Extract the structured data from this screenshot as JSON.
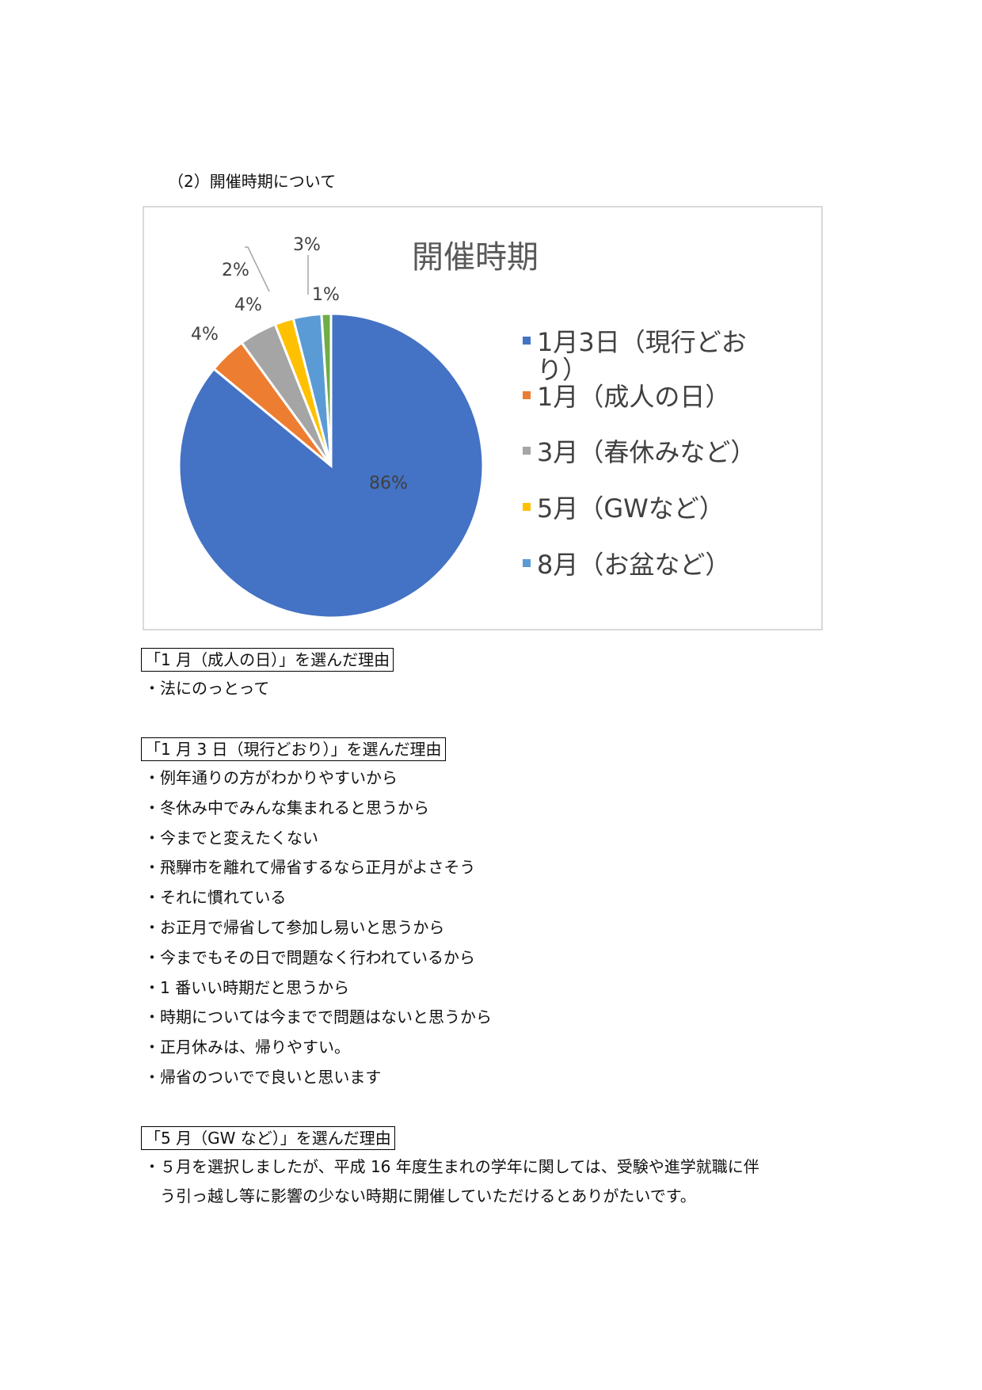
{
  "heading": "（2）開催時期について",
  "chart_data": {
    "type": "pie",
    "title": "開催時期",
    "categories": [
      "1月3日（現行どおり）",
      "1月（成人の日）",
      "3月（春休みなど）",
      "5月（GWなど）",
      "8月（お盆など）",
      ""
    ],
    "values": [
      86,
      4,
      4,
      2,
      3,
      1
    ],
    "data_labels": [
      "86%",
      "4%",
      "4%",
      "2%",
      "3%",
      "1%"
    ],
    "colors": [
      "#4472c4",
      "#ed7d31",
      "#a5a5a5",
      "#ffc000",
      "#5b9bd5",
      "#70ad47"
    ],
    "legend": [
      "1月3日（現行どお",
      "り）",
      "1月（成人の日）",
      "3月（春休みなど）",
      "5月（GWなど）",
      "8月（お盆など）"
    ],
    "legend_placement": "right",
    "start_angle": "12 o'clock, clockwise"
  },
  "sections": [
    {
      "title": "「1 月（成人の日）」を選んだ理由",
      "items": [
        "・法にのっとって"
      ]
    },
    {
      "title": "「1 月 3 日（現行どおり）」を選んだ理由",
      "items": [
        "・例年通りの方がわかりやすいから",
        "・冬休み中でみんな集まれると思うから",
        "・今までと変えたくない",
        "・飛騨市を離れて帰省するなら正月がよさそう",
        "・それに慣れている",
        "・お正月で帰省して参加し易いと思うから",
        "・今までもその日で問題なく行われているから",
        "・1 番いい時期だと思うから",
        "・時期については今までで問題はないと思うから",
        "・正月休みは、帰りやすい。",
        "・帰省のついでで良いと思います"
      ]
    },
    {
      "title": "「5 月（GW など）」を選んだ理由",
      "items": [
        "・５月を選択しましたが、平成 16 年度生まれの学年に関しては、受験や進学就職に伴",
        "　う引っ越し等に影響の少ない時期に開催していただけるとありがたいです。"
      ]
    }
  ]
}
